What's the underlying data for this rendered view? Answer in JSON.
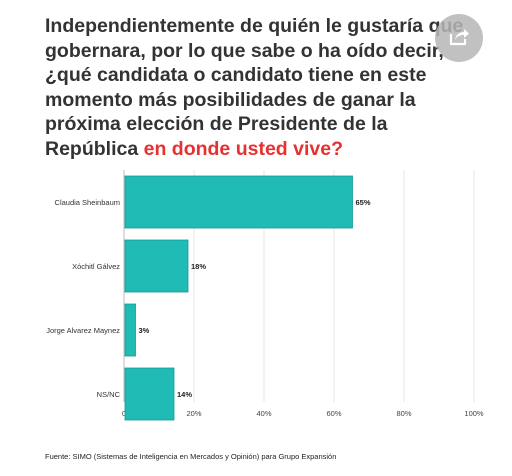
{
  "title": {
    "text": "Independientemente de quién le gustaría que gobernara, por lo que sabe o ha oído decir, ¿qué candidata o candidato tiene en este momento más posibilidades de ganar la próxima elección de Presidente de la República ",
    "highlight": "en donde usted vive?",
    "highlight_color": "#e8302f"
  },
  "share_button": {
    "icon": "share-icon"
  },
  "chart_data": {
    "type": "bar",
    "orientation": "horizontal",
    "categories": [
      "Claudia Sheinbaum",
      "Xóchitl Gálvez",
      "Jorge Alvarez Maynez",
      "NS/NC"
    ],
    "values": [
      65,
      18,
      3,
      14
    ],
    "value_labels": [
      "65%",
      "18%",
      "3%",
      "14%"
    ],
    "bar_color": "#20bbb5",
    "xlim": [
      0,
      100
    ],
    "x_ticks": [
      0,
      20,
      40,
      60,
      80,
      100
    ],
    "x_tick_labels": [
      "0",
      "20%",
      "40%",
      "60%",
      "80%",
      "100%"
    ],
    "grid": true
  },
  "source": {
    "text": "Fuente: SIMO (Sistemas de Inteligencia en Mercados y Opinión) para Grupo Expansión"
  }
}
